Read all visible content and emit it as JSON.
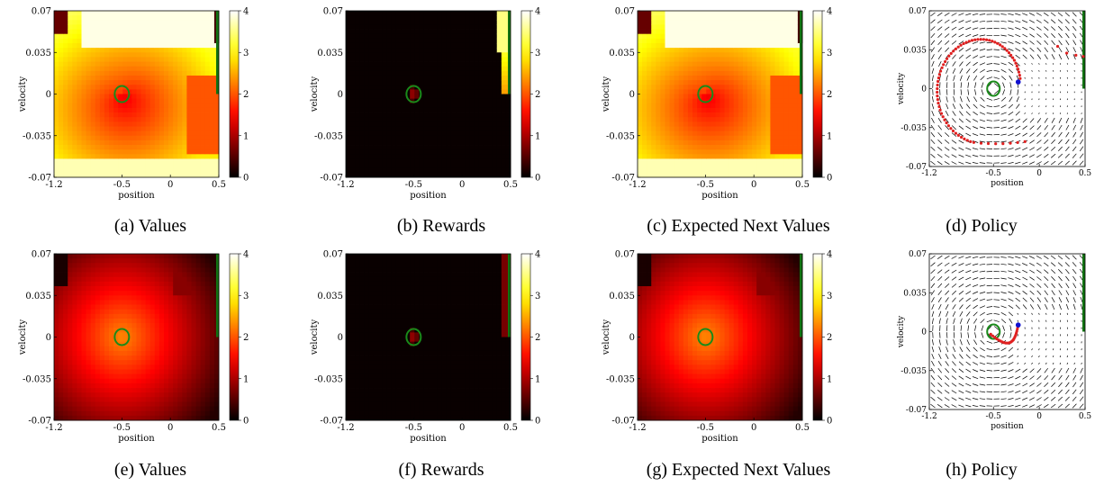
{
  "colors": {
    "start_marker": "#1a8a1a",
    "goal_line": "#127312",
    "trajectory": "#e02020",
    "agent_dot": "#1010d0",
    "arrow": "#000000"
  },
  "colormap": "hot",
  "chart_data": [
    {
      "panel": "a",
      "caption": "(a) Values",
      "type": "heatmap",
      "field": "values",
      "row": 1,
      "xlabel": "position",
      "ylabel": "velocity",
      "xlim": [
        -1.2,
        0.5
      ],
      "ylim": [
        -0.07,
        0.07
      ],
      "xticks": [
        "-1.2",
        "-0.5",
        "0",
        "0.5"
      ],
      "yticks": [
        "-0.07",
        "-0.035",
        "0",
        "0.035",
        "0.07"
      ],
      "colorbar": {
        "range": [
          0,
          4
        ],
        "ticks": [
          "0",
          "1",
          "2",
          "3",
          "4"
        ]
      },
      "start_marker": {
        "x": -0.5,
        "y": 0
      },
      "goal_x": 0.5,
      "goal_velocity_range": [
        0,
        0.07
      ]
    },
    {
      "panel": "b",
      "caption": "(b) Rewards",
      "type": "heatmap",
      "field": "rewards",
      "row": 1,
      "xlabel": "position",
      "ylabel": "velocity",
      "xlim": [
        -1.2,
        0.5
      ],
      "ylim": [
        -0.07,
        0.07
      ],
      "xticks": [
        "-1.2",
        "-0.5",
        "0",
        "0.5"
      ],
      "yticks": [
        "-0.07",
        "-0.035",
        "0",
        "0.035",
        "0.07"
      ],
      "colorbar": {
        "range": [
          0,
          4
        ],
        "ticks": [
          "0",
          "1",
          "2",
          "3",
          "4"
        ]
      },
      "start_marker": {
        "x": -0.5,
        "y": 0
      },
      "goal_x": 0.5,
      "goal_velocity_range": [
        0,
        0.07
      ]
    },
    {
      "panel": "c",
      "caption": "(c) Expected Next Values",
      "type": "heatmap",
      "field": "values",
      "row": 1,
      "xlabel": "position",
      "ylabel": "velocity",
      "xlim": [
        -1.2,
        0.5
      ],
      "ylim": [
        -0.07,
        0.07
      ],
      "xticks": [
        "-1.2",
        "-0.5",
        "0",
        "0.5"
      ],
      "yticks": [
        "-0.07",
        "-0.035",
        "0",
        "0.035",
        "0.07"
      ],
      "colorbar": {
        "range": [
          0,
          4
        ],
        "ticks": [
          "0",
          "1",
          "2",
          "3",
          "4"
        ]
      },
      "start_marker": {
        "x": -0.5,
        "y": 0
      },
      "goal_x": 0.5,
      "goal_velocity_range": [
        0,
        0.07
      ]
    },
    {
      "panel": "d",
      "caption": "(d) Policy",
      "type": "quiver",
      "row": 1,
      "xlabel": "position",
      "ylabel": "velocity",
      "xlim": [
        -1.2,
        0.5
      ],
      "ylim": [
        -0.07,
        0.07
      ],
      "xticks": [
        "-1.2",
        "-0.5",
        "0",
        "0.5"
      ],
      "yticks": [
        "-0.07",
        "-0.035",
        "0",
        "0.035",
        "0.07"
      ],
      "start_marker": {
        "x": -0.5,
        "y": 0
      },
      "goal_x": 0.5,
      "goal_velocity_range": [
        0,
        0.07
      ],
      "trajectory": {
        "start": {
          "x": -0.23,
          "y": 0.006
        },
        "shape": "loop_to_goal"
      }
    },
    {
      "panel": "e",
      "caption": "(e) Values",
      "type": "heatmap",
      "field": "values",
      "row": 2,
      "xlabel": "position",
      "ylabel": "velocity",
      "xlim": [
        -1.2,
        0.5
      ],
      "ylim": [
        -0.07,
        0.07
      ],
      "xticks": [
        "-1.2",
        "-0.5",
        "0",
        "0.5"
      ],
      "yticks": [
        "-0.07",
        "-0.035",
        "0",
        "0.035",
        "0.07"
      ],
      "colorbar": {
        "range": [
          0,
          4
        ],
        "ticks": [
          "0",
          "1",
          "2",
          "3",
          "4"
        ]
      },
      "start_marker": {
        "x": -0.5,
        "y": 0
      },
      "goal_x": 0.5,
      "goal_velocity_range": [
        0,
        0.07
      ]
    },
    {
      "panel": "f",
      "caption": "(f) Rewards",
      "type": "heatmap",
      "field": "rewards",
      "row": 2,
      "xlabel": "position",
      "ylabel": "velocity",
      "xlim": [
        -1.2,
        0.5
      ],
      "ylim": [
        -0.07,
        0.07
      ],
      "xticks": [
        "-1.2",
        "-0.5",
        "0",
        "0.5"
      ],
      "yticks": [
        "-0.07",
        "-0.035",
        "0",
        "0.035",
        "0.07"
      ],
      "colorbar": {
        "range": [
          0,
          4
        ],
        "ticks": [
          "0",
          "1",
          "2",
          "3",
          "4"
        ]
      },
      "start_marker": {
        "x": -0.5,
        "y": 0
      },
      "goal_x": 0.5,
      "goal_velocity_range": [
        0,
        0.07
      ]
    },
    {
      "panel": "g",
      "caption": "(g) Expected Next Values",
      "type": "heatmap",
      "field": "values",
      "row": 2,
      "xlabel": "position",
      "ylabel": "velocity",
      "xlim": [
        -1.2,
        0.5
      ],
      "ylim": [
        -0.07,
        0.07
      ],
      "xticks": [
        "-1.2",
        "-0.5",
        "0",
        "0.5"
      ],
      "yticks": [
        "-0.07",
        "-0.035",
        "0",
        "0.035",
        "0.07"
      ],
      "colorbar": {
        "range": [
          0,
          4
        ],
        "ticks": [
          "0",
          "1",
          "2",
          "3",
          "4"
        ]
      },
      "start_marker": {
        "x": -0.5,
        "y": 0
      },
      "goal_x": 0.5,
      "goal_velocity_range": [
        0,
        0.07
      ]
    },
    {
      "panel": "h",
      "caption": "(h) Policy",
      "type": "quiver",
      "row": 2,
      "xlabel": "position",
      "ylabel": "velocity",
      "xlim": [
        -1.2,
        0.5
      ],
      "ylim": [
        -0.07,
        0.07
      ],
      "xticks": [
        "-1.2",
        "-0.5",
        "0",
        "0.5"
      ],
      "yticks": [
        "-0.07",
        "-0.035",
        "0",
        "0.035",
        "0.07"
      ],
      "start_marker": {
        "x": -0.5,
        "y": 0
      },
      "goal_x": 0.5,
      "goal_velocity_range": [
        0,
        0.07
      ],
      "trajectory": {
        "start": {
          "x": -0.23,
          "y": 0.006
        },
        "shape": "short_arc"
      }
    }
  ]
}
